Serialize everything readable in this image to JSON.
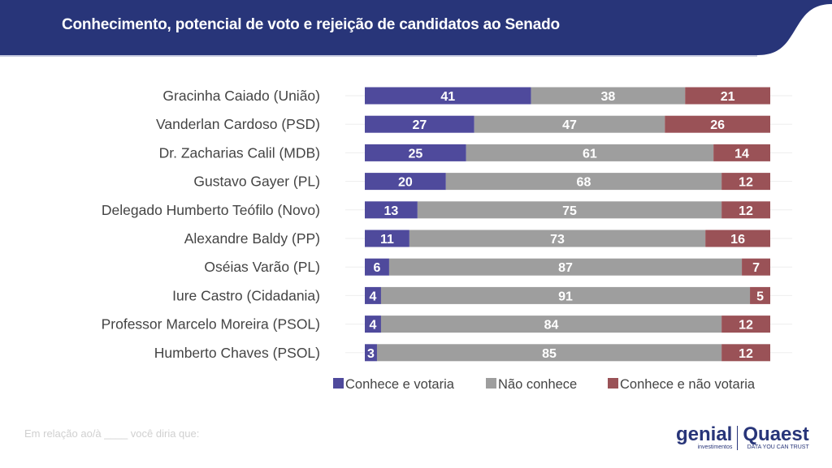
{
  "header": {
    "title": "Conhecimento, potencial de voto e rejeição de candidatos ao Senado"
  },
  "footer": {
    "note": "Em relação ao/à ____ você diria que:",
    "logo_genial": "genial",
    "logo_genial_sub": "investimentos",
    "logo_quaest": "Quaest",
    "logo_quaest_sub": "DATA YOU CAN TRUST"
  },
  "colors": {
    "header": "#283579",
    "conhece_votaria": "#4f4a9c",
    "nao_conhece": "#9e9e9e",
    "nao_votaria": "#9a5257"
  },
  "chart_data": {
    "type": "bar",
    "orientation": "horizontal-stacked-100",
    "categories": [
      "Gracinha Caiado (União)",
      "Vanderlan Cardoso (PSD)",
      "Dr. Zacharias Calil (MDB)",
      "Gustavo Gayer (PL)",
      "Delegado Humberto Teófilo (Novo)",
      "Alexandre Baldy (PP)",
      "Oséias Varão (PL)",
      "Iure Castro (Cidadania)",
      "Professor Marcelo Moreira (PSOL)",
      "Humberto Chaves (PSOL)"
    ],
    "series": [
      {
        "name": "Conhece e votaria",
        "values": [
          41,
          27,
          25,
          20,
          13,
          11,
          6,
          4,
          4,
          3
        ]
      },
      {
        "name": "Não conhece",
        "values": [
          38,
          47,
          61,
          68,
          75,
          73,
          87,
          91,
          84,
          85
        ]
      },
      {
        "name": "Conhece e não votaria",
        "values": [
          21,
          26,
          14,
          12,
          12,
          16,
          7,
          5,
          12,
          12
        ]
      }
    ],
    "legend": "bottom"
  }
}
